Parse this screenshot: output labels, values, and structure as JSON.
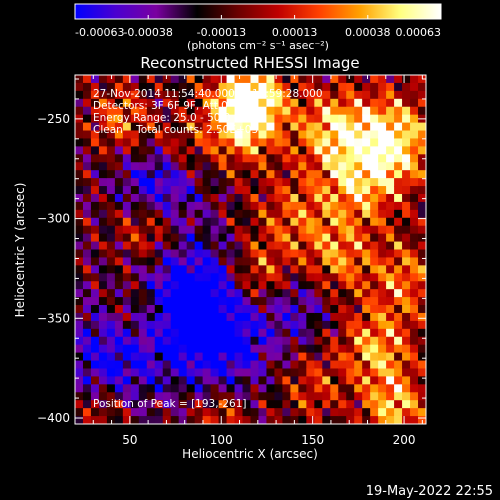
{
  "colorbar": {
    "ticks": [
      "-0.00063",
      "-0.00038",
      "-0.00013",
      "0.00013",
      "0.00038",
      "0.00063"
    ],
    "units_label": "(photons cm⁻² s⁻¹ asec⁻²)",
    "colormap": [
      "#0000ff",
      "#4a00d0",
      "#7a00a0",
      "#000000",
      "#6a0000",
      "#c00000",
      "#ff4000",
      "#ffa000",
      "#ffff80",
      "#ffffff"
    ]
  },
  "chart_data": {
    "type": "heatmap",
    "title": "Reconstructed RHESSI Image",
    "xlabel": "Heliocentric X (arcsec)",
    "ylabel": "Heliocentric Y (arcsec)",
    "xlim": [
      20,
      212
    ],
    "ylim": [
      -403,
      -228
    ],
    "x_ticks": [
      50,
      100,
      150,
      200
    ],
    "y_ticks": [
      -400,
      -350,
      -300,
      -250
    ],
    "x_tick_labels": [
      "50",
      "100",
      "150",
      "200"
    ],
    "y_tick_labels": [
      "−400",
      "−350",
      "−300",
      "−250"
    ],
    "value_range": [
      -0.00063,
      0.00063
    ],
    "grid": false,
    "peak_position": [
      193,
      -261
    ],
    "annotations": [
      "27-Nov-2014 11:54:40.000 to 11:59:28.000",
      "Detectors: 3F 6F 9F, Att 0",
      "Energy Range: 25.0 - 50.0 keV",
      "Clean    Total counts: 2.50E+03",
      "Position of Peak = [193,-261]"
    ]
  },
  "timestamp": "19-May-2022 22:55"
}
